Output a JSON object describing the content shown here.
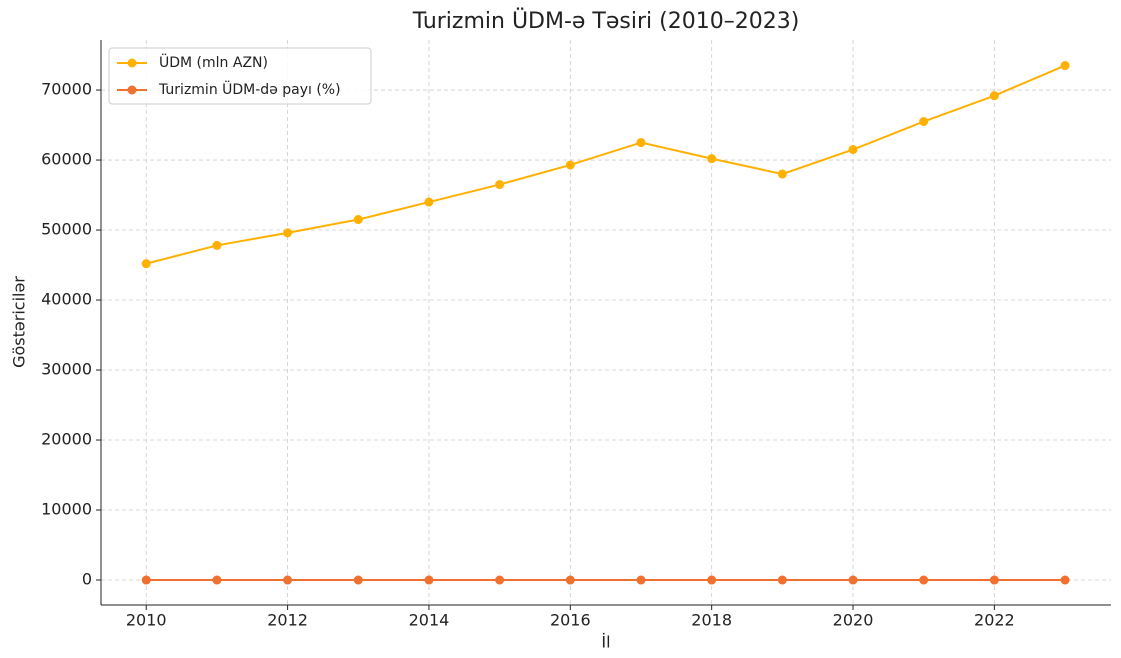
{
  "chart_data": {
    "type": "line",
    "title": "Turizmin ÜDM-ə Təsiri (2010–2023)",
    "xlabel": "İl",
    "ylabel": "Göstəricilər",
    "x": [
      2010,
      2011,
      2012,
      2013,
      2014,
      2015,
      2016,
      2017,
      2018,
      2019,
      2020,
      2021,
      2022,
      2023
    ],
    "series": [
      {
        "name": "ÜDM (mln AZN)",
        "color": "#ffb000",
        "values": [
          45200,
          47800,
          49600,
          51500,
          54000,
          56500,
          59300,
          62500,
          60200,
          58000,
          61500,
          65500,
          69200,
          73500
        ]
      },
      {
        "name": "Turizmin ÜDM-də payı (%)",
        "color": "#f07030",
        "values": [
          0,
          0,
          0,
          0,
          0,
          0,
          0,
          0,
          0,
          0,
          0,
          0,
          0,
          0
        ]
      }
    ],
    "xlim": [
      2009.36,
      2023.65
    ],
    "xticks": [
      2010,
      2012,
      2014,
      2016,
      2018,
      2020,
      2022
    ],
    "ylim": [
      -3570,
      77150
    ],
    "yticks": [
      0,
      10000,
      20000,
      30000,
      40000,
      50000,
      60000,
      70000
    ],
    "grid": true,
    "legend": "upper left"
  }
}
